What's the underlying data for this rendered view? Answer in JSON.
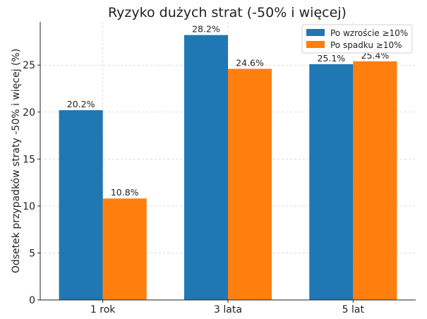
{
  "chart_data": {
    "type": "bar",
    "title": "Ryzyko dużych strat (-50% i więcej)",
    "xlabel": "",
    "ylabel": "Odsetek przypadków straty -50% i więcej (%)",
    "categories": [
      "1 rok",
      "3 lata",
      "5 lat"
    ],
    "series": [
      {
        "name": "Po wzroście ≥10%",
        "values": [
          20.2,
          28.2,
          25.1
        ],
        "color": "#1f77b4"
      },
      {
        "name": "Po spadku ≥10%",
        "values": [
          10.8,
          24.6,
          25.4
        ],
        "color": "#ff7f0e"
      }
    ],
    "data_labels": [
      [
        "20.2%",
        "28.2%",
        "25.1%"
      ],
      [
        "10.8%",
        "24.6%",
        "25.4%"
      ]
    ],
    "ylim": [
      0,
      29.6
    ],
    "yticks": [
      0,
      5,
      10,
      15,
      20,
      25
    ],
    "grid": true,
    "legend_position": "top-right"
  }
}
